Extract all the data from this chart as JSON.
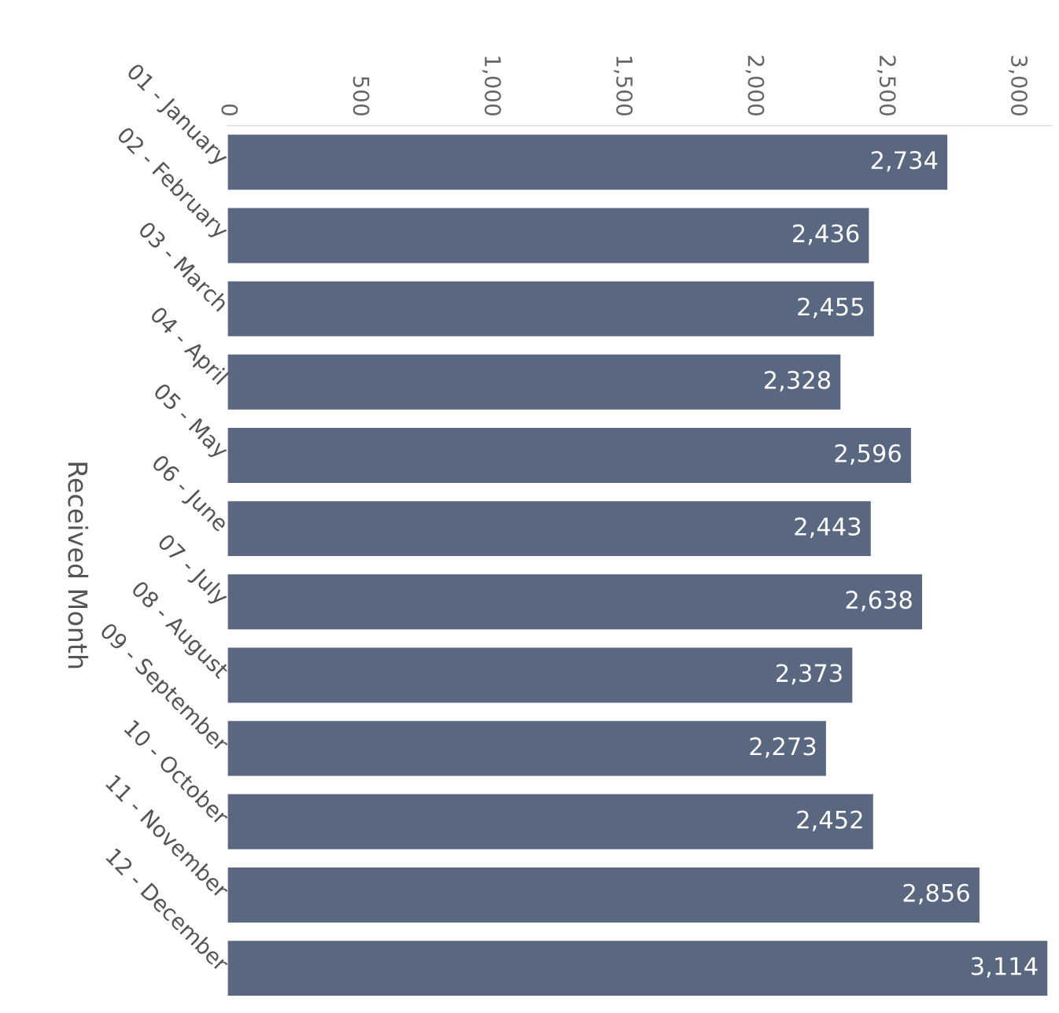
{
  "chart_data": {
    "type": "bar",
    "orientation": "horizontal",
    "ylabel": "Received Month",
    "categories": [
      "01 - January",
      "02 - February",
      "03 - March",
      "04 - April",
      "05 - May",
      "06 - June",
      "07 - July",
      "08 - August",
      "09 - September",
      "10 - October",
      "11 - November",
      "12 - December"
    ],
    "values": [
      2734,
      2436,
      2455,
      2328,
      2596,
      2443,
      2638,
      2373,
      2273,
      2452,
      2856,
      3114
    ],
    "value_labels": [
      "2,734",
      "2,436",
      "2,455",
      "2,328",
      "2,596",
      "2,443",
      "2,638",
      "2,373",
      "2,273",
      "2,452",
      "2,856",
      "3,114"
    ],
    "color": "#5a6780",
    "xlim": [
      0,
      3130
    ],
    "xticks": [
      0,
      {
        "value": 500,
        "label": "500"
      },
      {
        "value": 1000,
        "label": "1,000"
      },
      {
        "value": 1500,
        "label": "1,500"
      },
      {
        "value": 2000,
        "label": "2,000"
      },
      {
        "value": 2500,
        "label": "2,500"
      },
      {
        "value": 3000,
        "label": "3,000"
      }
    ],
    "grid": false,
    "legend": false
  }
}
